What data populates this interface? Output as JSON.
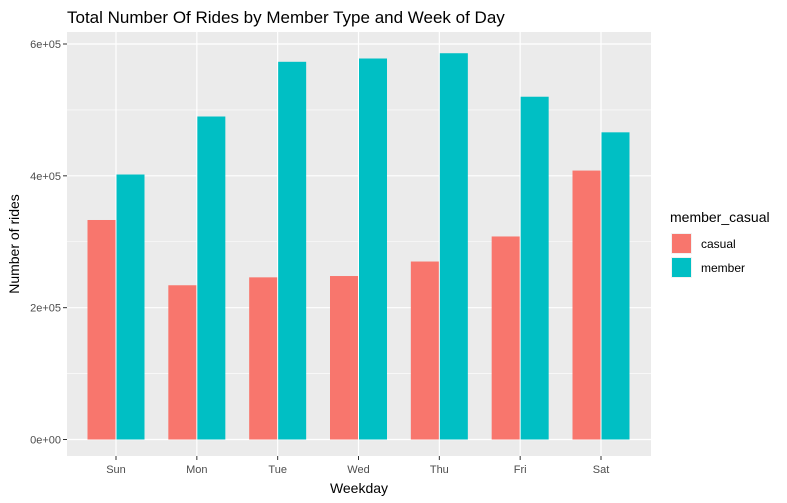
{
  "chart_data": {
    "type": "bar",
    "title": "Total Number Of Rides by Member Type and Week of Day",
    "xlabel": "Weekday",
    "ylabel": "Number of rides",
    "categories": [
      "Sun",
      "Mon",
      "Tue",
      "Wed",
      "Thu",
      "Fri",
      "Sat"
    ],
    "series": [
      {
        "name": "casual",
        "color": "#F8766D",
        "values": [
          333000,
          234000,
          246000,
          248000,
          270000,
          308000,
          408000
        ]
      },
      {
        "name": "member",
        "color": "#00BFC4",
        "values": [
          402000,
          490000,
          573000,
          578000,
          586000,
          520000,
          466000
        ]
      }
    ],
    "ylim": [
      0,
      600000
    ],
    "yticks": [
      0,
      200000,
      400000,
      600000
    ],
    "ytick_labels": [
      "0e+00",
      "2e+05",
      "4e+05",
      "6e+05"
    ],
    "legend": {
      "title": "member_casual",
      "position": "right"
    },
    "grid": true,
    "panel_background": "#EBEBEB"
  }
}
